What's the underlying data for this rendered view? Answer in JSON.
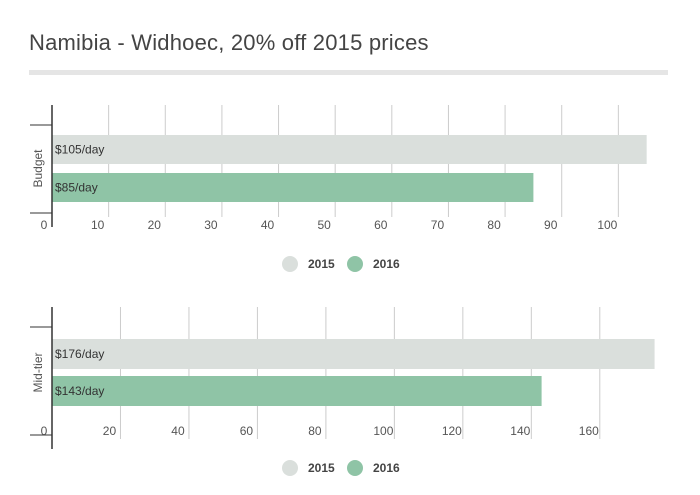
{
  "title": "Namibia - Widhoec, 20% off 2015 prices",
  "colors": {
    "s2015": "#dadfdc",
    "s2016": "#8fc4a6",
    "grid": "#cccccc",
    "axis": "#333333"
  },
  "chart_data": [
    {
      "type": "bar",
      "orientation": "horizontal",
      "category": "Budget",
      "series": [
        {
          "name": "2015",
          "value": 105,
          "label": "$105/day"
        },
        {
          "name": "2016",
          "value": 85,
          "label": "$85/day"
        }
      ],
      "xlim": [
        0,
        107
      ],
      "xticks": [
        0,
        10,
        20,
        30,
        40,
        50,
        60,
        70,
        80,
        90,
        100
      ],
      "legend": [
        "2015",
        "2016"
      ],
      "legend_position": "bottom",
      "grid": true
    },
    {
      "type": "bar",
      "orientation": "horizontal",
      "category": "Mid-tier",
      "series": [
        {
          "name": "2015",
          "value": 176,
          "label": "$176/day"
        },
        {
          "name": "2016",
          "value": 143,
          "label": "$143/day"
        }
      ],
      "xlim": [
        0,
        177
      ],
      "xticks": [
        0,
        20,
        40,
        60,
        80,
        100,
        120,
        140,
        160
      ],
      "legend": [
        "2015",
        "2016"
      ],
      "legend_position": "bottom",
      "grid": true
    }
  ]
}
